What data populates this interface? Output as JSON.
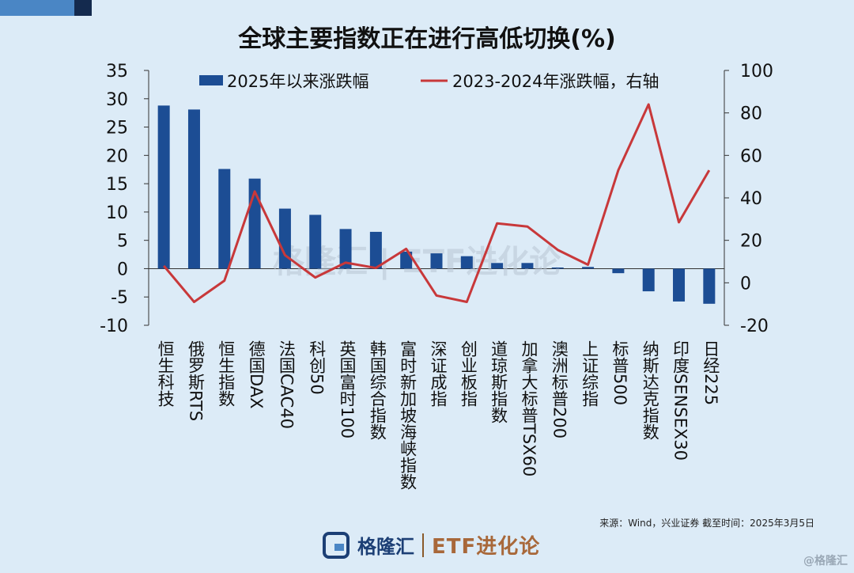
{
  "page": {
    "title": "全球主要指数正在进行高低切换(%)",
    "source": "来源：Wind，兴业证券   截至时间：2025年3月5日",
    "brand": "格隆汇",
    "brand_etf": "ETF进化论",
    "corner_watermark": "@格隆汇",
    "colors": {
      "bar": "#1c4d94",
      "line": "#c8383a",
      "background": "#dcebf7",
      "accent_dark": "#142a4e",
      "accent_light": "#4a86c5"
    }
  },
  "chart_data": {
    "type": "bar",
    "title": "全球主要指数正在进行高低切换(%)",
    "categories": [
      "恒生科技",
      "俄罗斯RTS",
      "恒生指数",
      "德国DAX",
      "法国CAC40",
      "科创50",
      "英国富时100",
      "韩国综合指数",
      "富时新加坡海峡指数",
      "深证成指",
      "创业板指",
      "道琼斯指数",
      "加拿大标普TSX60",
      "澳洲标普200",
      "上证综指",
      "标普500",
      "纳斯达克指数",
      "印度SENSEX30",
      "日经225"
    ],
    "series": [
      {
        "name": "2025年以来涨跌幅",
        "type": "bar",
        "axis": "left",
        "values": [
          28.8,
          28.1,
          17.6,
          15.9,
          10.6,
          9.5,
          7.0,
          6.5,
          3.0,
          2.7,
          2.2,
          1.0,
          1.0,
          0.2,
          0.3,
          -0.8,
          -4.0,
          -5.8,
          -6.2
        ]
      },
      {
        "name": "2023-2024年涨跌幅，右轴",
        "type": "line",
        "axis": "right",
        "values": [
          8,
          -9,
          1,
          43,
          13,
          2.5,
          9.5,
          7,
          16,
          -6,
          -9,
          28,
          26.5,
          15.5,
          8.5,
          53,
          84,
          28.5,
          53
        ]
      }
    ],
    "y_left": {
      "lim": [
        -10,
        35
      ],
      "ticks": [
        -10,
        -5,
        0,
        5,
        10,
        15,
        20,
        25,
        30,
        35
      ]
    },
    "y_right": {
      "lim": [
        -20,
        100
      ],
      "ticks": [
        -20,
        0,
        20,
        40,
        60,
        80,
        100
      ]
    },
    "legend": {
      "position": "top",
      "entries": [
        "2025年以来涨跌幅",
        "2023-2024年涨跌幅，右轴"
      ]
    },
    "grid": false
  }
}
